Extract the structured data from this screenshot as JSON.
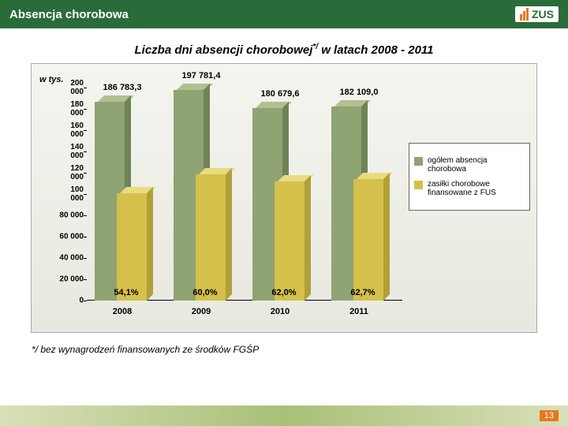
{
  "header": {
    "title": "Absencja chorobowa",
    "logo_text": "ZUS"
  },
  "chart": {
    "title_prefix": "Liczba dni absencji chorobowej",
    "title_sup": "*/",
    "title_suffix": " w latach 2008 - 2011",
    "y_axis_label": "w tys.",
    "y_ticks": [
      "0",
      "20 000",
      "40 000",
      "60 000",
      "80 000",
      "100 000",
      "120 000",
      "140 000",
      "160 000",
      "180 000",
      "200 000"
    ],
    "y_max": 200000,
    "categories": [
      "2008",
      "2009",
      "2010",
      "2011"
    ],
    "series1_values": [
      186783.3,
      197781.4,
      180679.6,
      182109.0
    ],
    "series1_labels": [
      "186 783,3",
      "197 781,4",
      "180 679,6",
      "182 109,0"
    ],
    "series2_pct": [
      54.1,
      60.0,
      62.0,
      62.7
    ],
    "series2_labels": [
      "54,1%",
      "60,0%",
      "62,0%",
      "62,7%"
    ],
    "series1_color": "#8fa373",
    "series1_color_dark": "#6f8357",
    "series1_color_top": "#b0c090",
    "series2_color": "#d4c04a",
    "series2_color_dark": "#b0a038",
    "series2_color_top": "#e8dc80",
    "background_grad_top": "#f5f5f0",
    "background_grad_bottom": "#e8e8e0"
  },
  "legend": {
    "item1": "ogółem absencja chorobowa",
    "item2": "zasiłki chorobowe finansowane z FUS"
  },
  "footnote": "*/ bez wynagrodzeń finansowanych ze środków FGŚP",
  "page": "13"
}
